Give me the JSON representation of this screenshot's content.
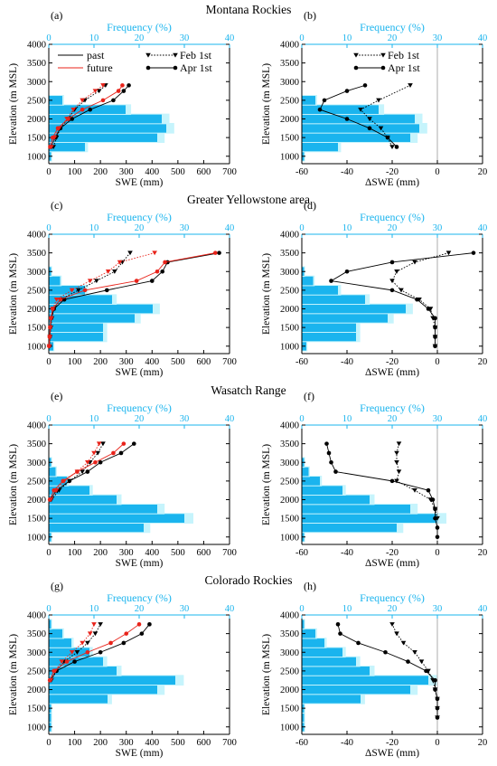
{
  "regions": [
    "Montana Rockies",
    "Greater Yellowstone area",
    "Wasatch Range",
    "Colorado Rockies"
  ],
  "axes": {
    "ylabel": "Elevation (m MSL)",
    "freq_label": "Frequency (%)",
    "swe_label": "SWE (mm)",
    "dswe_label": "ΔSWE (mm)",
    "y_ticks": [
      "1000",
      "1500",
      "2000",
      "2500",
      "3000",
      "3500",
      "4000"
    ],
    "swe_ticks": [
      "0",
      "100",
      "200",
      "300",
      "400",
      "500",
      "600",
      "700"
    ],
    "dswe_ticks": [
      "-60",
      "-40",
      "-20",
      "0",
      "20"
    ],
    "freq_ticks": [
      "0",
      "10",
      "20",
      "30",
      "40"
    ]
  },
  "legend": {
    "past": "past",
    "future": "future",
    "feb": "Feb 1st",
    "apr": "Apr 1st"
  },
  "colors": {
    "past": "#000000",
    "future": "#e8231a",
    "hist": "#1ab4ee",
    "hist_light": "#c6f4fc",
    "freq_axis": "#1ab4ee"
  },
  "chart_data": [
    {
      "panel": "(a)",
      "type": "bar+line",
      "title": "Montana Rockies",
      "xlabel": "SWE (mm)",
      "ylabel": "Elevation (m MSL)",
      "x2label": "Frequency (%)",
      "xlim": [
        0,
        700
      ],
      "ylim": [
        800,
        4000
      ],
      "x2lim": [
        0,
        40
      ],
      "frequency": {
        "elevation": [
          1000,
          1250,
          1500,
          1750,
          2000,
          2250,
          2500,
          2750,
          3000
        ],
        "percent": [
          0.5,
          8,
          24,
          26,
          25,
          17,
          3,
          0,
          0
        ]
      },
      "series": [
        {
          "name": "past",
          "month": "Feb 1st",
          "elevation": [
            1250,
            1500,
            1750,
            2000,
            2250,
            2500,
            2750,
            2900
          ],
          "values": [
            18,
            30,
            45,
            75,
            100,
            140,
            195,
            220
          ]
        },
        {
          "name": "past",
          "month": "Apr 1st",
          "elevation": [
            1250,
            1500,
            1750,
            2000,
            2250,
            2500,
            2750,
            2900
          ],
          "values": [
            8,
            25,
            45,
            90,
            160,
            250,
            290,
            310
          ]
        },
        {
          "name": "future",
          "month": "Feb 1st",
          "elevation": [
            1250,
            1500,
            1750,
            2000,
            2250,
            2500,
            2750,
            2900
          ],
          "values": [
            10,
            22,
            40,
            70,
            95,
            130,
            180,
            210
          ]
        },
        {
          "name": "future",
          "month": "Apr 1st",
          "elevation": [
            1250,
            1500,
            1750,
            2000,
            2250,
            2500,
            2750,
            2900
          ],
          "values": [
            5,
            15,
            35,
            75,
            130,
            210,
            270,
            285
          ]
        }
      ]
    },
    {
      "panel": "(b)",
      "type": "bar+line",
      "xlabel": "ΔSWE (mm)",
      "x2label": "Frequency (%)",
      "xlim": [
        -60,
        20
      ],
      "ylim": [
        800,
        4000
      ],
      "x2lim": [
        0,
        40
      ],
      "frequency": {
        "elevation": [
          1000,
          1250,
          1500,
          1750,
          2000,
          2250,
          2500,
          2750,
          3000
        ],
        "percent": [
          0.5,
          8,
          24,
          26,
          25,
          17,
          3,
          0,
          0
        ]
      },
      "series": [
        {
          "month": "Feb 1st",
          "elevation": [
            1250,
            1500,
            1750,
            2000,
            2250,
            2500,
            2900
          ],
          "values": [
            -20,
            -22,
            -25,
            -30,
            -34,
            -26,
            -12
          ]
        },
        {
          "month": "Apr 1st",
          "elevation": [
            1250,
            1500,
            1750,
            2000,
            2250,
            2500,
            2750,
            2900
          ],
          "values": [
            -18,
            -22,
            -30,
            -40,
            -52,
            -50,
            -40,
            -32
          ]
        }
      ]
    },
    {
      "panel": "(c)",
      "type": "bar+line",
      "title": "Greater Yellowstone area",
      "xlabel": "SWE (mm)",
      "ylabel": "Elevation (m MSL)",
      "x2label": "Frequency (%)",
      "xlim": [
        0,
        700
      ],
      "ylim": [
        800,
        4000
      ],
      "x2lim": [
        0,
        40
      ],
      "frequency": {
        "elevation": [
          1000,
          1250,
          1500,
          1750,
          2000,
          2250,
          2500,
          2750,
          3000,
          3250,
          3500
        ],
        "percent": [
          1,
          12,
          12,
          19,
          23,
          14,
          8,
          2.5,
          0.5,
          0,
          0
        ]
      },
      "series": [
        {
          "name": "past",
          "month": "Feb 1st",
          "elevation": [
            1000,
            1250,
            1500,
            1750,
            2000,
            2250,
            2500,
            2750,
            3000,
            3250,
            3500
          ],
          "values": [
            3,
            5,
            8,
            12,
            20,
            45,
            115,
            185,
            255,
            285,
            315
          ]
        },
        {
          "name": "past",
          "month": "Apr 1st",
          "elevation": [
            1000,
            1250,
            1500,
            1750,
            2000,
            2250,
            2500,
            2750,
            3000,
            3250,
            3500
          ],
          "values": [
            2,
            4,
            6,
            10,
            20,
            60,
            225,
            400,
            440,
            460,
            660
          ]
        },
        {
          "name": "future",
          "month": "Feb 1st",
          "elevation": [
            1000,
            1250,
            1500,
            1750,
            2000,
            2250,
            2500,
            2750,
            3000,
            3250,
            3500
          ],
          "values": [
            2,
            4,
            6,
            10,
            15,
            30,
            90,
            160,
            230,
            275,
            410
          ]
        },
        {
          "name": "future",
          "month": "Apr 1st",
          "elevation": [
            1000,
            1250,
            1500,
            1750,
            2000,
            2250,
            2500,
            2750,
            3000,
            3250,
            3500
          ],
          "values": [
            1,
            3,
            5,
            8,
            15,
            45,
            140,
            340,
            420,
            450,
            645
          ]
        }
      ]
    },
    {
      "panel": "(d)",
      "type": "bar+line",
      "xlabel": "ΔSWE (mm)",
      "x2label": "Frequency (%)",
      "xlim": [
        -60,
        20
      ],
      "ylim": [
        800,
        4000
      ],
      "x2lim": [
        0,
        40
      ],
      "frequency": {
        "elevation": [
          1000,
          1250,
          1500,
          1750,
          2000,
          2250,
          2500,
          2750,
          3000,
          3250,
          3500
        ],
        "percent": [
          1,
          12,
          12,
          19,
          23,
          14,
          8,
          2.5,
          0.5,
          0,
          0
        ]
      },
      "series": [
        {
          "month": "Feb 1st",
          "elevation": [
            1000,
            1250,
            1500,
            1750,
            2000,
            2250,
            2500,
            2750,
            3000,
            3250,
            3500
          ],
          "values": [
            -1,
            -1,
            -1,
            -2,
            -3,
            -8,
            -16,
            -20,
            -18,
            -10,
            5
          ]
        },
        {
          "month": "Apr 1st",
          "elevation": [
            1000,
            1250,
            1500,
            1750,
            2000,
            2250,
            2500,
            2750,
            3000,
            3250,
            3500
          ],
          "values": [
            -1,
            -1,
            -1,
            -1,
            -4,
            -9,
            -20,
            -47,
            -40,
            -20,
            16
          ]
        }
      ]
    },
    {
      "panel": "(e)",
      "type": "bar+line",
      "title": "Wasatch Range",
      "xlabel": "SWE (mm)",
      "ylabel": "Elevation (m MSL)",
      "x2label": "Frequency (%)",
      "xlim": [
        0,
        700
      ],
      "ylim": [
        800,
        4000
      ],
      "x2lim": [
        0,
        40
      ],
      "frequency": {
        "elevation": [
          1000,
          1250,
          1500,
          1750,
          2000,
          2250,
          2500,
          2750,
          3000,
          3250,
          3500
        ],
        "percent": [
          0.5,
          21,
          30,
          24,
          15,
          9,
          4,
          1.5,
          0.5,
          0,
          0
        ]
      },
      "series": [
        {
          "name": "past",
          "month": "Feb 1st",
          "elevation": [
            2000,
            2250,
            2500,
            2750,
            3000,
            3250,
            3500
          ],
          "values": [
            10,
            40,
            80,
            130,
            160,
            190,
            210
          ]
        },
        {
          "name": "past",
          "month": "Apr 1st",
          "elevation": [
            2000,
            2250,
            2500,
            2750,
            3000,
            3250,
            3500
          ],
          "values": [
            5,
            30,
            80,
            150,
            200,
            280,
            330
          ]
        },
        {
          "name": "future",
          "month": "Feb 1st",
          "elevation": [
            2000,
            2250,
            2500,
            2750,
            3000,
            3250,
            3500
          ],
          "values": [
            8,
            30,
            60,
            110,
            150,
            175,
            195
          ]
        },
        {
          "name": "future",
          "month": "Apr 1st",
          "elevation": [
            2000,
            2250,
            2500,
            2750,
            3000,
            3250,
            3500
          ],
          "values": [
            4,
            20,
            55,
            110,
            180,
            250,
            290
          ]
        }
      ]
    },
    {
      "panel": "(f)",
      "type": "bar+line",
      "xlabel": "ΔSWE (mm)",
      "x2label": "Frequency (%)",
      "xlim": [
        -60,
        20
      ],
      "ylim": [
        800,
        4000
      ],
      "x2lim": [
        0,
        40
      ],
      "frequency": {
        "elevation": [
          1000,
          1250,
          1500,
          1750,
          2000,
          2250,
          2500,
          2750,
          3000,
          3250,
          3500
        ],
        "percent": [
          0.5,
          21,
          30,
          24,
          15,
          9,
          4,
          1.5,
          0.5,
          0,
          0
        ]
      },
      "series": [
        {
          "month": "Feb 1st",
          "elevation": [
            1500,
            1750,
            2000,
            2250,
            2500,
            2750,
            3000,
            3250,
            3500
          ],
          "values": [
            0,
            -1,
            -3,
            -10,
            -18,
            -17,
            -18,
            -18,
            -17
          ]
        },
        {
          "month": "Apr 1st",
          "elevation": [
            1000,
            1250,
            1500,
            1750,
            2000,
            2250,
            2500,
            2750,
            3000,
            3250,
            3500
          ],
          "values": [
            0,
            0,
            -1,
            -1,
            -2,
            -4,
            -20,
            -45,
            -47,
            -48,
            -49
          ]
        }
      ]
    },
    {
      "panel": "(g)",
      "type": "bar+line",
      "title": "Colorado Rockies",
      "xlabel": "SWE (mm)",
      "ylabel": "Elevation (m MSL)",
      "x2label": "Frequency (%)",
      "xlim": [
        0,
        700
      ],
      "ylim": [
        800,
        4000
      ],
      "x2lim": [
        0,
        40
      ],
      "frequency": {
        "elevation": [
          1000,
          1250,
          1500,
          1750,
          2000,
          2250,
          2500,
          2750,
          3000,
          3250,
          3500,
          3750,
          4000
        ],
        "percent": [
          0.5,
          0.5,
          0.5,
          13,
          24,
          28,
          15,
          12,
          9,
          5,
          3,
          0.5,
          0
        ]
      },
      "series": [
        {
          "name": "past",
          "month": "Feb 1st",
          "elevation": [
            2250,
            2500,
            2750,
            3000,
            3250,
            3500,
            3750
          ],
          "values": [
            10,
            30,
            60,
            110,
            150,
            180,
            200
          ]
        },
        {
          "name": "past",
          "month": "Apr 1st",
          "elevation": [
            2250,
            2500,
            2750,
            3000,
            3250,
            3500,
            3750
          ],
          "values": [
            5,
            30,
            100,
            200,
            290,
            360,
            390
          ]
        },
        {
          "name": "future",
          "month": "Feb 1st",
          "elevation": [
            2250,
            2500,
            2750,
            3000,
            3250,
            3500,
            3750
          ],
          "values": [
            8,
            25,
            50,
            90,
            130,
            160,
            175
          ]
        },
        {
          "name": "future",
          "month": "Apr 1st",
          "elevation": [
            2250,
            2500,
            2750,
            3000,
            3250,
            3500,
            3750
          ],
          "values": [
            4,
            20,
            70,
            150,
            240,
            300,
            350
          ]
        }
      ]
    },
    {
      "panel": "(h)",
      "type": "bar+line",
      "xlabel": "ΔSWE (mm)",
      "x2label": "Frequency (%)",
      "xlim": [
        -60,
        20
      ],
      "ylim": [
        800,
        4000
      ],
      "x2lim": [
        0,
        40
      ],
      "frequency": {
        "elevation": [
          1000,
          1250,
          1500,
          1750,
          2000,
          2250,
          2500,
          2750,
          3000,
          3250,
          3500,
          3750,
          4000
        ],
        "percent": [
          0.5,
          0.5,
          0.5,
          13,
          24,
          28,
          15,
          12,
          9,
          5,
          3,
          0.5,
          0
        ]
      },
      "series": [
        {
          "month": "Feb 1st",
          "elevation": [
            1250,
            1500,
            1750,
            2000,
            2250,
            2500,
            2750,
            3000,
            3250,
            3500,
            3750
          ],
          "values": [
            0,
            0,
            0,
            -1,
            -2,
            -4,
            -7,
            -10,
            -15,
            -18,
            -20
          ]
        },
        {
          "month": "Apr 1st",
          "elevation": [
            1250,
            1500,
            1750,
            2000,
            2250,
            2500,
            2750,
            3000,
            3250,
            3500,
            3750
          ],
          "values": [
            0,
            0,
            0,
            -1,
            -1,
            -5,
            -13,
            -23,
            -35,
            -43,
            -44
          ]
        }
      ]
    }
  ]
}
